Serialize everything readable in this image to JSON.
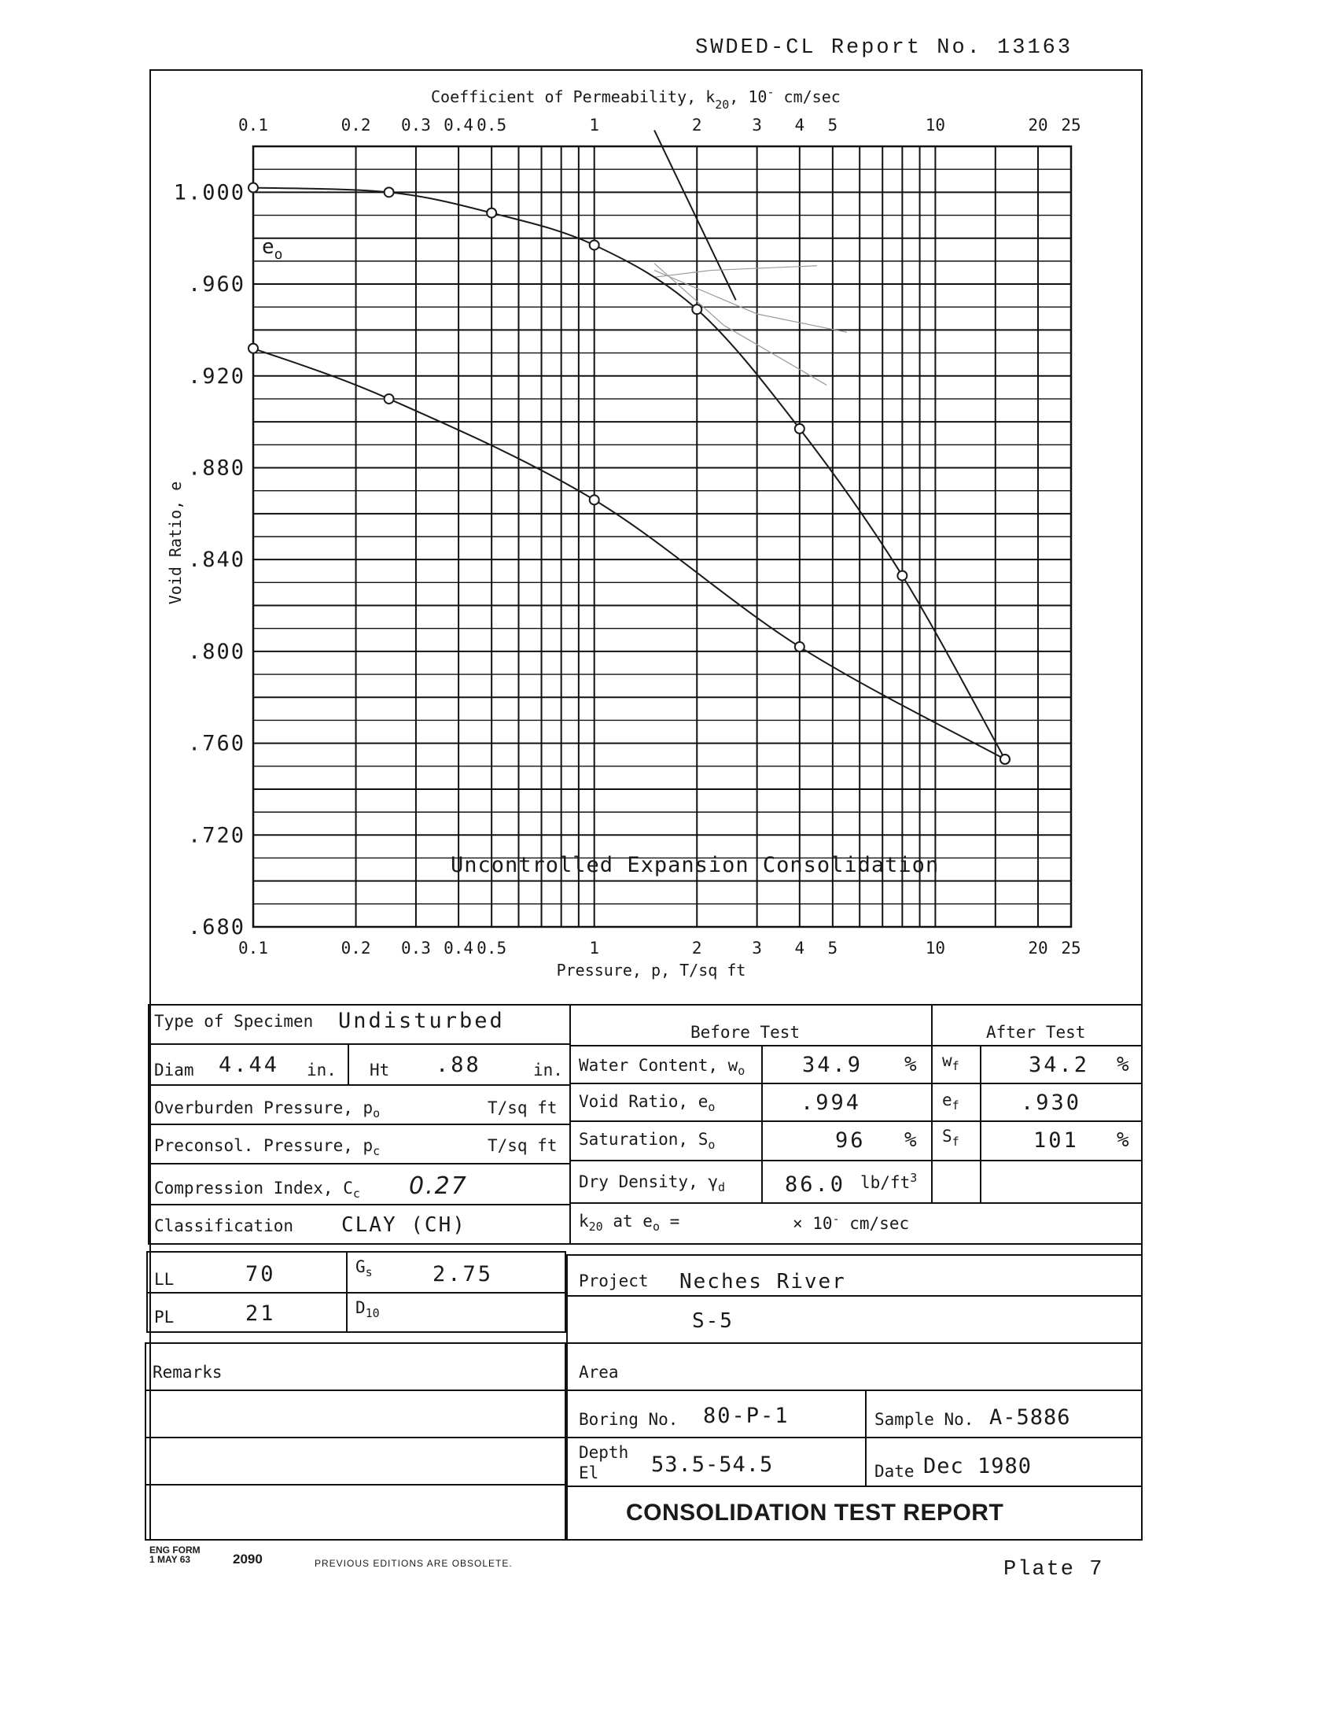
{
  "header": {
    "report_number": "SWDED-CL Report No. 13163"
  },
  "chart_data": {
    "type": "line",
    "top_axis_title": "Coefficient of Permeability, k",
    "top_axis_title_sub": "20",
    "top_axis_title_units": ", 10",
    "top_axis_title_sup": "-",
    "top_axis_title_end": "  cm/sec",
    "xlabel": "Pressure, p, T/sq ft",
    "ylabel": "Void Ratio, e",
    "x_scale": "log",
    "xlim": [
      0.1,
      25
    ],
    "ylim": [
      0.68,
      1.02
    ],
    "x_ticks": [
      0.1,
      0.2,
      0.3,
      0.4,
      0.5,
      1,
      2,
      3,
      4,
      5,
      10,
      20,
      25
    ],
    "x_tick_labels": [
      "0.1",
      "0.2",
      "0.3",
      "0.4",
      "0.5",
      "1",
      "2",
      "3",
      "4",
      "5",
      "10",
      "20",
      "25"
    ],
    "y_ticks": [
      1.0,
      0.96,
      0.92,
      0.88,
      0.84,
      0.8,
      0.76,
      0.72,
      0.68
    ],
    "y_tick_labels": [
      "1.000",
      ".960",
      ".920",
      ".880",
      ".840",
      ".800",
      ".760",
      ".720",
      ".680"
    ],
    "grid": true,
    "eo_label": "e",
    "eo_label_sub": "o",
    "annotation": "Uncontrolled Expansion Consolidation",
    "series": [
      {
        "values_x": [
          0.1,
          0.25,
          0.5,
          1,
          2,
          4,
          8,
          16
        ],
        "values_y": [
          1.002,
          1.0,
          0.991,
          0.977,
          0.949,
          0.897,
          0.833,
          0.753
        ],
        "color": "#1a1a1a"
      },
      {
        "values_x": [
          16,
          4,
          1,
          0.25,
          0.1
        ],
        "values_y": [
          0.753,
          0.802,
          0.866,
          0.91,
          0.932
        ],
        "color": "#1a1a1a"
      }
    ],
    "construction_lines": [
      {
        "x": [
          1.5,
          2.6
        ],
        "y": [
          1.027,
          0.953
        ],
        "color": "#1a1a1a"
      },
      {
        "x": [
          1.5,
          2.2,
          4.5
        ],
        "y": [
          0.963,
          0.966,
          0.968
        ],
        "color": "#9a9a9a"
      },
      {
        "x": [
          1.5,
          3.0,
          5.5
        ],
        "y": [
          0.966,
          0.947,
          0.939
        ],
        "color": "#9a9a9a"
      },
      {
        "x": [
          1.5,
          2.4,
          4.8
        ],
        "y": [
          0.969,
          0.942,
          0.916
        ],
        "color": "#9a9a9a"
      }
    ]
  },
  "form": {
    "type_of_specimen_label": "Type of Specimen",
    "type_of_specimen": "Undisturbed",
    "before_test_label": "Before Test",
    "after_test_label": "After Test",
    "diam_label": "Diam",
    "diam": "4.44",
    "in_label": "in.",
    "ht_label": "Ht",
    "ht": ".88",
    "water_content_label": "Water Content, w",
    "water_content_sub": "o",
    "water_content": "34.9",
    "percent": "%",
    "wf_label": "w",
    "wf_sub": "f",
    "wf": "34.2",
    "overburden_label": "Overburden Pressure, p",
    "overburden_sub": "o",
    "tsqft": "T/sq ft",
    "void_ratio_label": "Void Ratio, e",
    "void_ratio_sub": "o",
    "void_ratio": ".994",
    "ef_label": "e",
    "ef_sub": "f",
    "ef": ".930",
    "preconsol_label": "Preconsol. Pressure, p",
    "preconsol_sub": "c",
    "saturation_label": "Saturation, S",
    "saturation_sub": "o",
    "saturation": "96",
    "sf_label": "S",
    "sf_sub": "f",
    "sf": "101",
    "compression_label": "Compression Index, C",
    "compression_sub": "c",
    "compression_index": "0.27",
    "dry_density_label": "Dry Density, γ",
    "dry_density_sub": "d",
    "dry_density": "86.0",
    "dry_density_units": "lb/ft",
    "dry_density_sup": "3",
    "classification_label": "Classification",
    "classification": "CLAY  (CH)",
    "k20_label": "k",
    "k20_sub": "20",
    "k20_at": " at e",
    "k20_at_sub": "o",
    "k20_eq": " =",
    "k20_units": "× 10",
    "k20_sup": "-",
    "k20_end": "  cm/sec",
    "ll_label": "LL",
    "ll": "70",
    "gs_label": "G",
    "gs_sub": "s",
    "gs": "2.75",
    "pl_label": "PL",
    "pl": "21",
    "d10_label": "D",
    "d10_sub": "10",
    "project_label": "Project",
    "project": "Neches River",
    "project_line2": "S-5",
    "remarks_label": "Remarks",
    "area_label": "Area",
    "boring_label": "Boring No.",
    "boring": "80-P-1",
    "sample_label": "Sample No.",
    "sample": "A-5886",
    "depth_label": "Depth",
    "el_label": "El",
    "depth": "53.5-54.5",
    "date_label": "Date",
    "date": "Dec 1980",
    "report_title": "CONSOLIDATION TEST REPORT"
  },
  "footer": {
    "eng_form": "ENG FORM",
    "form_date": "1 MAY 63",
    "form_number": "2090",
    "obsolete": "PREVIOUS EDITIONS ARE OBSOLETE.",
    "plate": "Plate 7"
  }
}
